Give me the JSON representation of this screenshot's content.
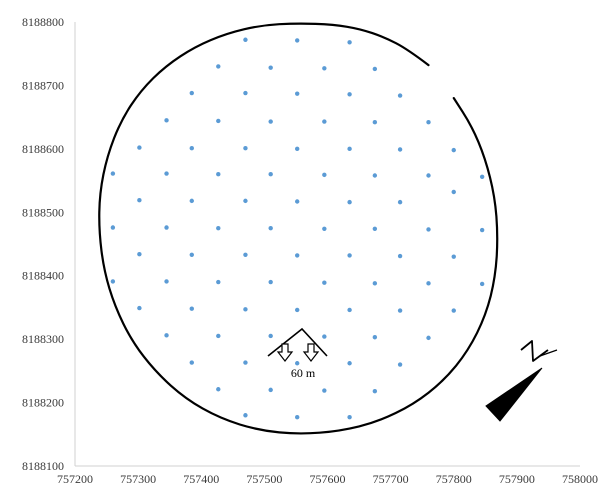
{
  "chart_data": {
    "type": "scatter",
    "title": "",
    "xlabel": "",
    "ylabel": "",
    "xlim": [
      757200,
      758000
    ],
    "ylim": [
      8188100,
      8188800
    ],
    "x_ticks": [
      757200,
      757300,
      757400,
      757500,
      757600,
      757700,
      757800,
      757900,
      758000
    ],
    "y_ticks": [
      8188100,
      8188200,
      8188300,
      8188400,
      8188500,
      8188600,
      8188700,
      8188800
    ],
    "grid": false,
    "legend": "none",
    "colors": {
      "points": "#5b9bd5",
      "outline": "#000000",
      "axis": "#d0d0d0",
      "tick_text": "#3a3a3a"
    },
    "series": [
      {
        "points": [
          [
            757470,
            8188772
          ],
          [
            757552,
            8188771
          ],
          [
            757635,
            8188768
          ],
          [
            757427,
            8188730
          ],
          [
            757510,
            8188728
          ],
          [
            757595,
            8188727
          ],
          [
            757675,
            8188726
          ],
          [
            757385,
            8188688
          ],
          [
            757470,
            8188688
          ],
          [
            757552,
            8188687
          ],
          [
            757635,
            8188686
          ],
          [
            757715,
            8188684
          ],
          [
            757345,
            8188645
          ],
          [
            757427,
            8188644
          ],
          [
            757510,
            8188643
          ],
          [
            757595,
            8188643
          ],
          [
            757675,
            8188642
          ],
          [
            757760,
            8188642
          ],
          [
            757302,
            8188602
          ],
          [
            757385,
            8188601
          ],
          [
            757470,
            8188601
          ],
          [
            757552,
            8188600
          ],
          [
            757635,
            8188600
          ],
          [
            757715,
            8188599
          ],
          [
            757800,
            8188598
          ],
          [
            757260,
            8188561
          ],
          [
            757345,
            8188561
          ],
          [
            757427,
            8188560
          ],
          [
            757510,
            8188560
          ],
          [
            757595,
            8188559
          ],
          [
            757675,
            8188558
          ],
          [
            757760,
            8188558
          ],
          [
            757845,
            8188556
          ],
          [
            757302,
            8188519
          ],
          [
            757385,
            8188518
          ],
          [
            757470,
            8188518
          ],
          [
            757552,
            8188517
          ],
          [
            757635,
            8188516
          ],
          [
            757715,
            8188516
          ],
          [
            757800,
            8188532
          ],
          [
            757260,
            8188476
          ],
          [
            757345,
            8188476
          ],
          [
            757427,
            8188475
          ],
          [
            757510,
            8188475
          ],
          [
            757595,
            8188474
          ],
          [
            757675,
            8188474
          ],
          [
            757760,
            8188473
          ],
          [
            757845,
            8188472
          ],
          [
            757302,
            8188434
          ],
          [
            757385,
            8188433
          ],
          [
            757470,
            8188433
          ],
          [
            757552,
            8188432
          ],
          [
            757635,
            8188432
          ],
          [
            757715,
            8188431
          ],
          [
            757800,
            8188430
          ],
          [
            757260,
            8188391
          ],
          [
            757345,
            8188391
          ],
          [
            757427,
            8188390
          ],
          [
            757510,
            8188390
          ],
          [
            757595,
            8188389
          ],
          [
            757675,
            8188388
          ],
          [
            757760,
            8188388
          ],
          [
            757845,
            8188387
          ],
          [
            757302,
            8188349
          ],
          [
            757385,
            8188348
          ],
          [
            757470,
            8188347
          ],
          [
            757552,
            8188346
          ],
          [
            757635,
            8188346
          ],
          [
            757715,
            8188345
          ],
          [
            757800,
            8188345
          ],
          [
            757345,
            8188306
          ],
          [
            757427,
            8188305
          ],
          [
            757510,
            8188305
          ],
          [
            757595,
            8188304
          ],
          [
            757675,
            8188303
          ],
          [
            757760,
            8188302
          ],
          [
            757385,
            8188263
          ],
          [
            757470,
            8188263
          ],
          [
            757552,
            8188262
          ],
          [
            757635,
            8188262
          ],
          [
            757715,
            8188260
          ],
          [
            757427,
            8188221
          ],
          [
            757510,
            8188220
          ],
          [
            757595,
            8188219
          ],
          [
            757675,
            8188218
          ],
          [
            757470,
            8188180
          ],
          [
            757552,
            8188177
          ],
          [
            757635,
            8188177
          ]
        ]
      }
    ],
    "outline": {
      "shape": "closed freehand curve around the point grid, with a small gap at the upper right",
      "points": [
        [
          757760,
          8188732
        ],
        [
          757727,
          8188757
        ],
        [
          757690,
          8188776
        ],
        [
          757652,
          8188789
        ],
        [
          757610,
          8188796
        ],
        [
          757552,
          8188798
        ],
        [
          757495,
          8188795
        ],
        [
          757440,
          8188782
        ],
        [
          757390,
          8188761
        ],
        [
          757344,
          8188731
        ],
        [
          757304,
          8188692
        ],
        [
          757273,
          8188645
        ],
        [
          757251,
          8188589
        ],
        [
          757239,
          8188530
        ],
        [
          757238,
          8188470
        ],
        [
          757246,
          8188408
        ],
        [
          757263,
          8188352
        ],
        [
          757290,
          8188297
        ],
        [
          757328,
          8188248
        ],
        [
          757375,
          8188206
        ],
        [
          757430,
          8188175
        ],
        [
          757492,
          8188156
        ],
        [
          757555,
          8188150
        ],
        [
          757620,
          8188155
        ],
        [
          757680,
          8188170
        ],
        [
          757736,
          8188197
        ],
        [
          757784,
          8188234
        ],
        [
          757823,
          8188282
        ],
        [
          757851,
          8188338
        ],
        [
          757866,
          8188398
        ],
        [
          757870,
          8188462
        ],
        [
          757865,
          8188525
        ],
        [
          757850,
          8188585
        ],
        [
          757828,
          8188637
        ],
        [
          757800,
          8188680
        ]
      ]
    },
    "annotations": {
      "distance_label": "60 m"
    }
  }
}
